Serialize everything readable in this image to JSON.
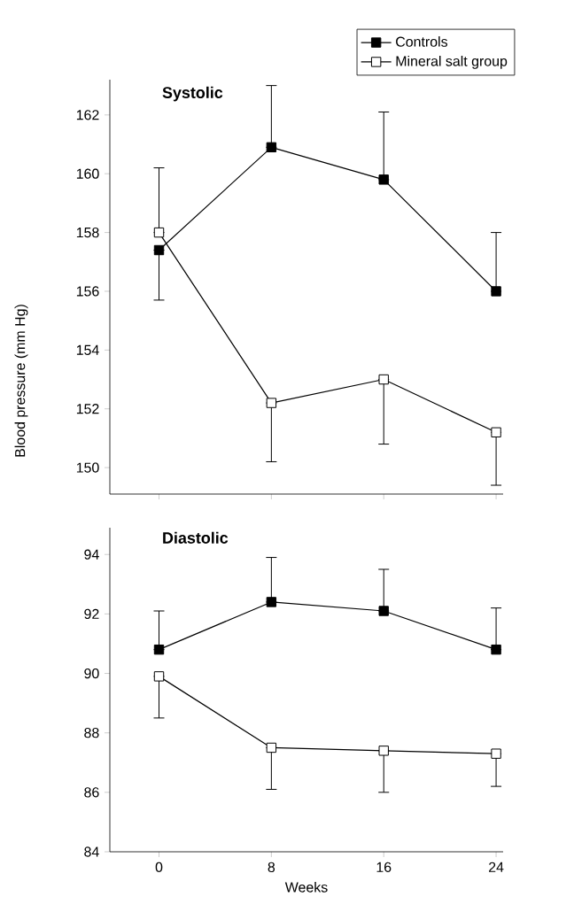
{
  "chart_data": [
    {
      "type": "line",
      "title": "Systolic",
      "ylabel": "Blood pressure (mm Hg)",
      "x": [
        0,
        8,
        16,
        24
      ],
      "xlim": [
        -3.5,
        24.5
      ],
      "xticks": [
        0,
        8,
        16,
        24
      ],
      "ylim": [
        149.1,
        163.2
      ],
      "yticks": [
        150,
        152,
        154,
        156,
        158,
        160,
        162
      ],
      "tick_labels": "y",
      "grid": false,
      "legend": "top right",
      "marker": "square",
      "line_style": "solid",
      "series": [
        {
          "name": "Controls",
          "color": "#000000",
          "values": [
            157.4,
            160.9,
            159.8,
            156.0
          ],
          "errors": [
            [
              155.7,
              157.4
            ],
            [
              160.9,
              163.0
            ],
            [
              159.8,
              162.1
            ],
            [
              156.0,
              158.0
            ]
          ]
        },
        {
          "name": "Mineral salt group",
          "color": "#ffffff",
          "values": [
            158.0,
            152.2,
            153.0,
            151.2
          ],
          "errors": [
            [
              158.0,
              160.2
            ],
            [
              150.2,
              152.2
            ],
            [
              150.8,
              153.0
            ],
            [
              149.4,
              151.2
            ]
          ]
        }
      ]
    },
    {
      "type": "line",
      "title": "Diastolic",
      "xlabel": "Weeks",
      "x": [
        0,
        8,
        16,
        24
      ],
      "xlim": [
        -3.5,
        24.5
      ],
      "xticks": [
        0,
        8,
        16,
        24
      ],
      "ylim": [
        84,
        94.9
      ],
      "yticks": [
        84,
        86,
        88,
        90,
        92,
        94
      ],
      "grid": false,
      "marker": "square",
      "line_style": "solid",
      "series": [
        {
          "color": "#000000",
          "values": [
            90.8,
            92.4,
            92.1,
            90.8
          ],
          "errors": [
            [
              90.8,
              92.1
            ],
            [
              92.4,
              93.9
            ],
            [
              92.1,
              93.5
            ],
            [
              90.8,
              92.2
            ]
          ]
        },
        {
          "color": "#ffffff",
          "values": [
            89.9,
            87.5,
            87.4,
            87.3
          ],
          "errors": [
            [
              88.5,
              89.9
            ],
            [
              86.1,
              87.5
            ],
            [
              86.0,
              87.4
            ],
            [
              86.2,
              87.3
            ]
          ]
        }
      ]
    }
  ]
}
